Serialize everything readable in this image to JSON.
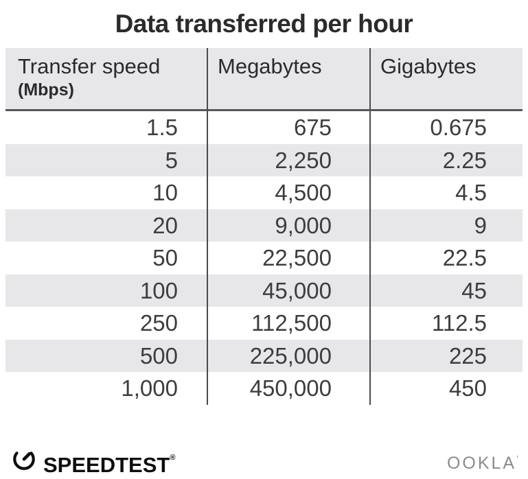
{
  "title": "Data transferred per hour",
  "chart_data": {
    "type": "table",
    "title": "Data transferred per hour",
    "columns": [
      "Transfer speed (Mbps)",
      "Megabytes",
      "Gigabytes"
    ],
    "rows": [
      [
        1.5,
        675,
        0.675
      ],
      [
        5,
        2250,
        2.25
      ],
      [
        10,
        4500,
        4.5
      ],
      [
        20,
        9000,
        9
      ],
      [
        50,
        22500,
        22.5
      ],
      [
        100,
        45000,
        45
      ],
      [
        250,
        112500,
        112.5
      ],
      [
        500,
        225000,
        225
      ],
      [
        1000,
        450000,
        450
      ]
    ],
    "rows_display": [
      [
        "1.5",
        "675",
        "0.675"
      ],
      [
        "5",
        "2,250",
        "2.25"
      ],
      [
        "10",
        "4,500",
        "4.5"
      ],
      [
        "20",
        "9,000",
        "9"
      ],
      [
        "50",
        "22,500",
        "22.5"
      ],
      [
        "100",
        "45,000",
        "45"
      ],
      [
        "250",
        "112,500",
        "112.5"
      ],
      [
        "500",
        "225,000",
        "225"
      ],
      [
        "1,000",
        "450,000",
        "450"
      ]
    ],
    "layout": {
      "striped_rows": "every second data row shaded",
      "column_dividers": true,
      "alignment": "numbers right-aligned"
    }
  },
  "table": {
    "header": {
      "col1_label": "Transfer speed",
      "col1_sublabel": "(Mbps)",
      "col2_label": "Megabytes",
      "col3_label": "Gigabytes"
    }
  },
  "footer": {
    "speedtest_label": "SPEEDTEST",
    "registered_mark": "®",
    "ookla_label": "OOKLA",
    "ookla_mark": "’"
  },
  "icons": {
    "speedtest_gauge": "gauge-icon"
  },
  "colors": {
    "title-text": "#2b2b2e",
    "header-bg": "#e7e7ea",
    "stripe-bg": "#e7e7ea",
    "divider": "#4a4a4c",
    "header-border": "#565658",
    "cell-text": "#3d3d40",
    "logo-black": "#0e0e10",
    "ookla-gray": "#8b8b8d"
  }
}
